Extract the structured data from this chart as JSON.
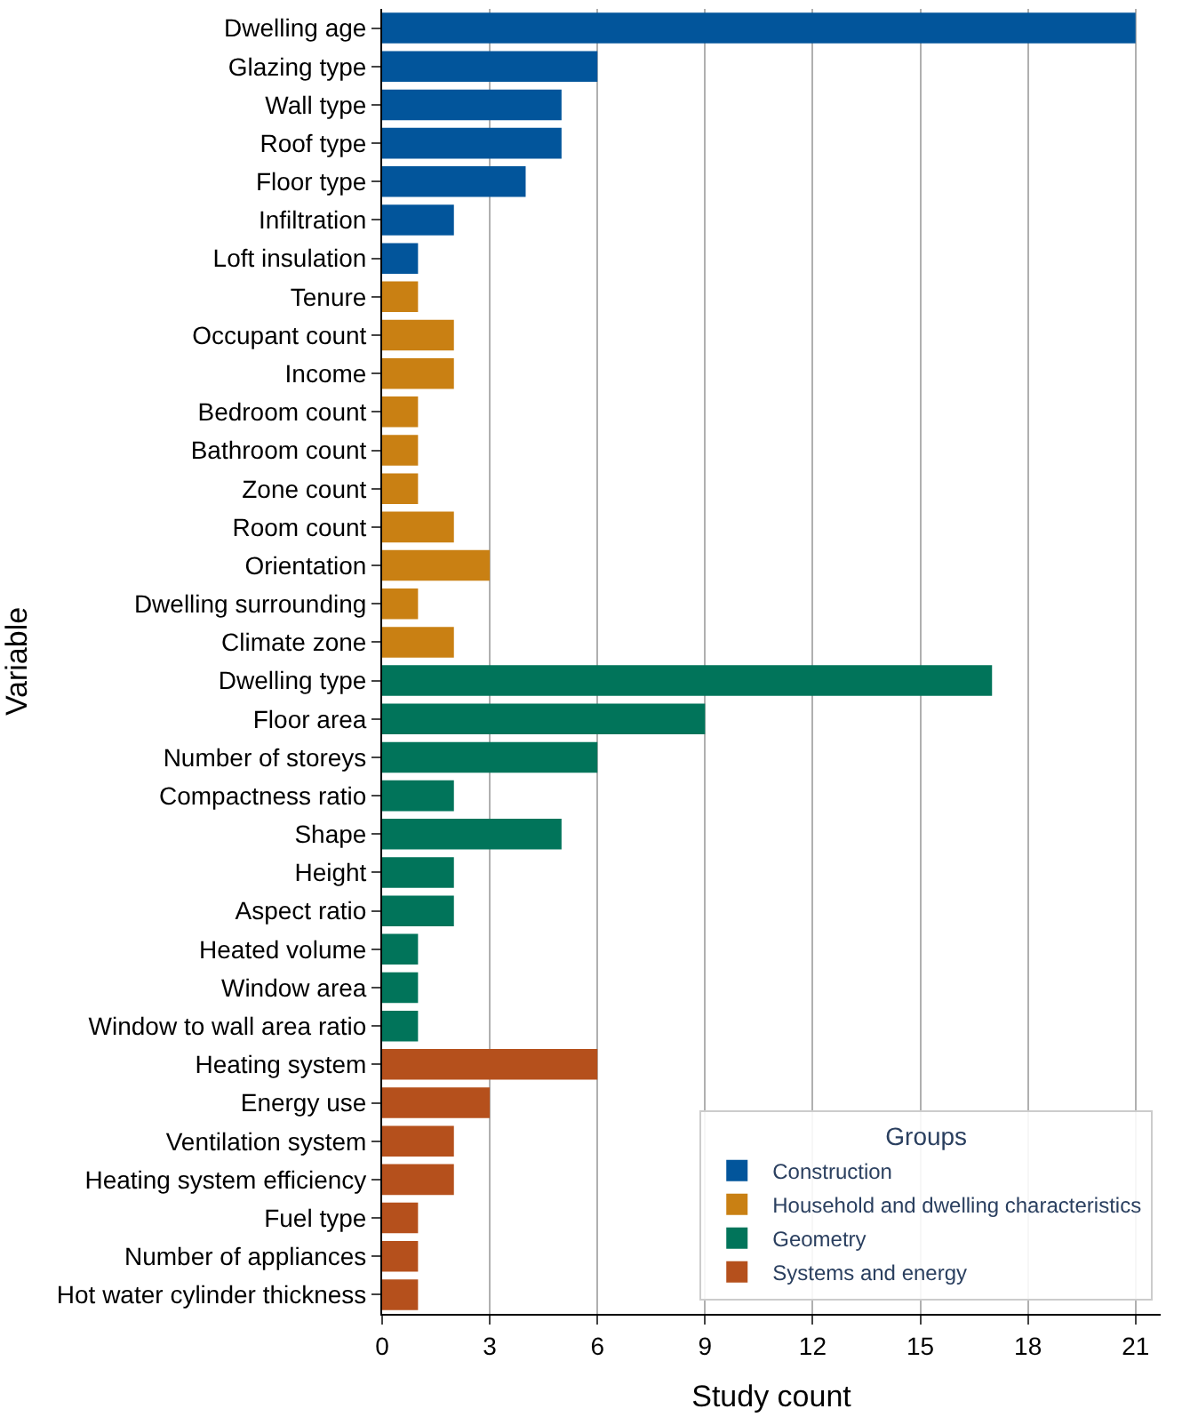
{
  "chart_data": {
    "type": "bar",
    "orientation": "horizontal",
    "xlabel": "Study count",
    "ylabel": "Variable",
    "legend_title": "Groups",
    "legend": "bottom right",
    "grid": "x",
    "categories": [
      "Dwelling age",
      "Glazing type",
      "Wall type",
      "Roof type",
      "Floor type",
      "Infiltration",
      "Loft insulation",
      "Tenure",
      "Occupant count",
      "Income",
      "Bedroom count",
      "Bathroom count",
      "Zone count",
      "Room count",
      "Orientation",
      "Dwelling surrounding",
      "Climate zone",
      "Dwelling type",
      "Floor area",
      "Number of storeys",
      "Compactness ratio",
      "Shape",
      "Height",
      "Aspect ratio",
      "Heated volume",
      "Window area",
      "Window to wall area ratio",
      "Heating system",
      "Energy use",
      "Ventilation system",
      "Heating system efficiency",
      "Fuel type",
      "Number of appliances",
      "Hot water cylinder thickness"
    ],
    "xlim": [
      0,
      21.7
    ],
    "xticks": [
      0,
      3,
      6,
      9,
      12,
      15,
      18,
      21
    ],
    "series": [
      {
        "name": "Construction",
        "color": "#02559b",
        "values": [
          21,
          6,
          5,
          5,
          4,
          2,
          1,
          null,
          null,
          null,
          null,
          null,
          null,
          null,
          null,
          null,
          null,
          null,
          null,
          null,
          null,
          null,
          null,
          null,
          null,
          null,
          null,
          null,
          null,
          null,
          null,
          null,
          null,
          null
        ]
      },
      {
        "name": "Household and dwelling characteristics",
        "color": "#c98013",
        "values": [
          null,
          null,
          null,
          null,
          null,
          null,
          null,
          1,
          2,
          2,
          1,
          1,
          1,
          2,
          3,
          1,
          2,
          null,
          null,
          null,
          null,
          null,
          null,
          null,
          null,
          null,
          null,
          null,
          null,
          null,
          null,
          null,
          null,
          null
        ]
      },
      {
        "name": "Geometry",
        "color": "#01745a",
        "values": [
          null,
          null,
          null,
          null,
          null,
          null,
          null,
          null,
          null,
          null,
          null,
          null,
          null,
          null,
          null,
          null,
          null,
          17,
          9,
          6,
          2,
          5,
          2,
          2,
          1,
          1,
          1,
          null,
          null,
          null,
          null,
          null,
          null,
          null
        ]
      },
      {
        "name": "Systems and energy",
        "color": "#b5501c",
        "values": [
          null,
          null,
          null,
          null,
          null,
          null,
          null,
          null,
          null,
          null,
          null,
          null,
          null,
          null,
          null,
          null,
          null,
          null,
          null,
          null,
          null,
          null,
          null,
          null,
          null,
          null,
          null,
          6,
          3,
          2,
          2,
          1,
          1,
          1
        ]
      }
    ]
  }
}
